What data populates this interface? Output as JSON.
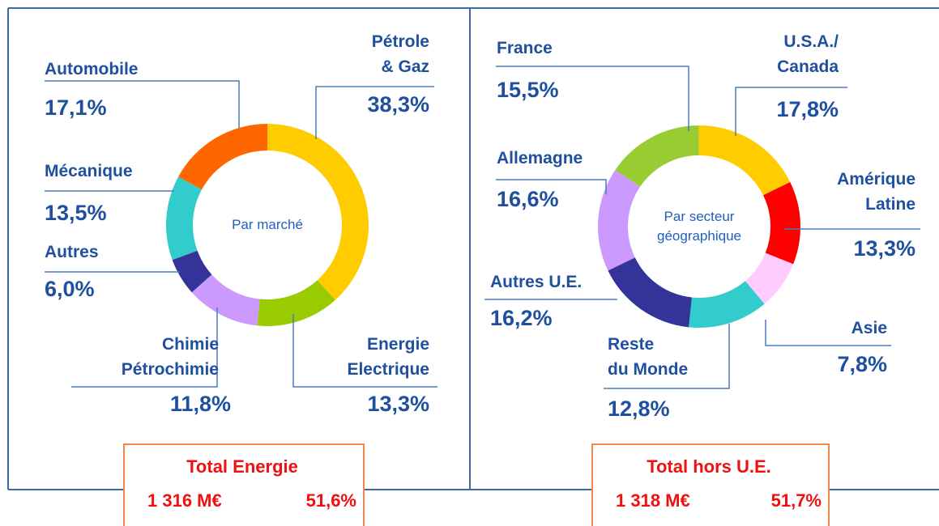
{
  "chart_data": [
    {
      "type": "pie",
      "title": "Par marché",
      "categories": [
        "Pétrole\n& Gaz",
        "Energie\nElectrique",
        "Chimie\nPétrochimie",
        "Autres",
        "Mécanique",
        "Automobile"
      ],
      "values": [
        38.3,
        13.3,
        11.8,
        6.0,
        13.5,
        17.1
      ],
      "value_labels": [
        "38,3%",
        "13,3%",
        "11,8%",
        "6,0%",
        "13,5%",
        "17,1%"
      ],
      "colors": [
        "#ffcc00",
        "#99cc00",
        "#cc99ff",
        "#333399",
        "#33cccc",
        "#ff6600"
      ],
      "donut": true,
      "total": {
        "title": "Total Energie",
        "amount": "1 316 M€",
        "share": "51,6%"
      }
    },
    {
      "type": "pie",
      "title": "Par secteur\ngéographique",
      "categories": [
        "France",
        "U.S.A./\nCanada",
        "Amérique\nLatine",
        "Asie",
        "Reste\ndu Monde",
        "Autres U.E.",
        "Allemagne"
      ],
      "values": [
        15.5,
        17.8,
        13.3,
        7.8,
        12.8,
        16.2,
        16.6
      ],
      "value_labels": [
        "15,5%",
        "17,8%",
        "13,3%",
        "7,8%",
        "12,8%",
        "16,2%",
        "16,6%"
      ],
      "colors": [
        "#99cc33",
        "#ffcc00",
        "#ff0000",
        "#ffccff",
        "#33cccc",
        "#333399",
        "#cc99ff"
      ],
      "donut": true,
      "total": {
        "title": "Total hors U.E.",
        "amount": "1 318 M€",
        "share": "51,7%"
      }
    }
  ]
}
